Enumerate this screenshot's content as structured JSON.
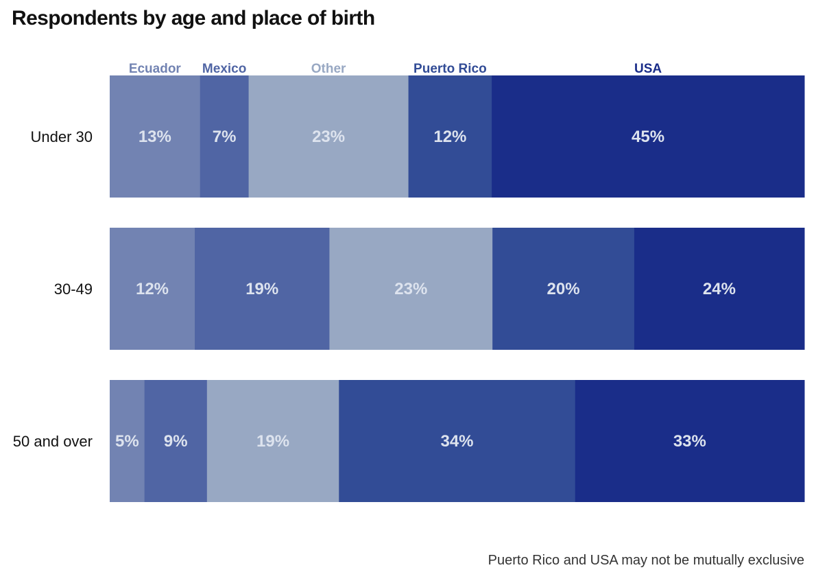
{
  "chart_data": {
    "type": "bar",
    "orientation": "horizontal",
    "stacked": true,
    "normalized": true,
    "title": "Respondents by age and place of birth",
    "note": "Puerto Rico and USA may not be mutually exclusive",
    "categories": [
      "Under 30",
      "30-49",
      "50 and over"
    ],
    "series": [
      {
        "name": "Ecuador",
        "color": "#7283b2",
        "values": [
          13,
          12,
          5
        ],
        "labels": [
          "13%",
          "12%",
          "5%"
        ]
      },
      {
        "name": "Mexico",
        "color": "#5065a4",
        "values": [
          7,
          19,
          9
        ],
        "labels": [
          "7%",
          "19%",
          "9%"
        ]
      },
      {
        "name": "Other",
        "color": "#98a8c3",
        "values": [
          23,
          23,
          19
        ],
        "labels": [
          "23%",
          "23%",
          "19%"
        ]
      },
      {
        "name": "Puerto Rico",
        "color": "#324c96",
        "values": [
          12,
          20,
          34
        ],
        "labels": [
          "12%",
          "20%",
          "34%"
        ]
      },
      {
        "name": "USA",
        "color": "#1a2d89",
        "values": [
          45,
          24,
          33
        ],
        "labels": [
          "45%",
          "24%",
          "33%"
        ]
      }
    ],
    "label_color": "#dde3ee",
    "legend_position": "top",
    "grid": false,
    "xlim": [
      0,
      100
    ]
  }
}
